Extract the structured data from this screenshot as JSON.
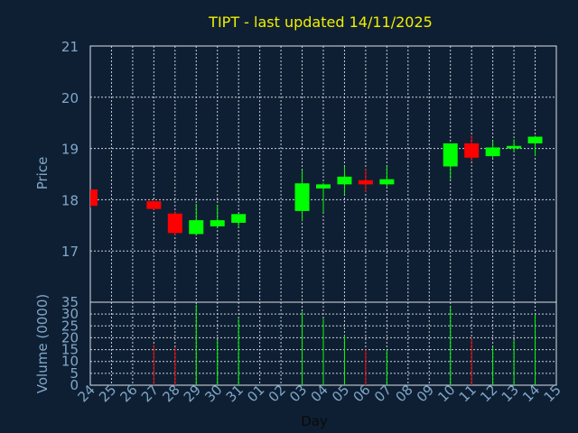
{
  "chart_data": {
    "type": "candlestick",
    "title": "TIPT - last updated 14/11/2025",
    "xlabel": "Day",
    "price_ylabel": "Price",
    "volume_ylabel": "Volume (0000)",
    "price_ylim": [
      16.0,
      21.0
    ],
    "price_ticks": [
      17,
      18,
      19,
      20,
      21
    ],
    "volume_ylim": [
      0,
      35
    ],
    "volume_ticks": [
      0,
      5,
      10,
      15,
      20,
      25,
      30,
      35
    ],
    "x_ticks": [
      "24",
      "25",
      "26",
      "27",
      "28",
      "29",
      "30",
      "31",
      "01",
      "02",
      "03",
      "04",
      "05",
      "06",
      "07",
      "08",
      "09",
      "10",
      "11",
      "12",
      "13",
      "14",
      "15"
    ],
    "grid": true,
    "colors": {
      "up": "#00ff00",
      "down": "#ff0000",
      "background": "#0f1f33",
      "text": "#7fa8c8",
      "title": "#f0f000"
    },
    "candles": [
      {
        "day": "24",
        "open": 18.2,
        "high": 18.2,
        "low": 17.85,
        "close": 17.88,
        "volume": 0
      },
      {
        "day": "27",
        "open": 17.97,
        "high": 17.98,
        "low": 17.8,
        "close": 17.82,
        "volume": 17
      },
      {
        "day": "28",
        "open": 17.73,
        "high": 17.78,
        "low": 17.3,
        "close": 17.35,
        "volume": 16
      },
      {
        "day": "29",
        "open": 17.33,
        "high": 17.92,
        "low": 17.3,
        "close": 17.6,
        "volume": 34
      },
      {
        "day": "30",
        "open": 17.48,
        "high": 17.9,
        "low": 17.45,
        "close": 17.6,
        "volume": 19
      },
      {
        "day": "31",
        "open": 17.55,
        "high": 17.72,
        "low": 17.45,
        "close": 17.72,
        "volume": 28
      },
      {
        "day": "03",
        "open": 17.78,
        "high": 18.58,
        "low": 17.58,
        "close": 18.32,
        "volume": 31
      },
      {
        "day": "04",
        "open": 18.22,
        "high": 18.33,
        "low": 17.75,
        "close": 18.3,
        "volume": 28
      },
      {
        "day": "05",
        "open": 18.3,
        "high": 18.65,
        "low": 18.1,
        "close": 18.45,
        "volume": 21
      },
      {
        "day": "06",
        "open": 18.38,
        "high": 18.6,
        "low": 18.15,
        "close": 18.3,
        "volume": 15
      },
      {
        "day": "07",
        "open": 18.3,
        "high": 18.65,
        "low": 18.25,
        "close": 18.4,
        "volume": 15
      },
      {
        "day": "10",
        "open": 18.65,
        "high": 19.1,
        "low": 18.4,
        "close": 19.1,
        "volume": 33
      },
      {
        "day": "11",
        "open": 19.1,
        "high": 19.25,
        "low": 18.75,
        "close": 18.82,
        "volume": 20
      },
      {
        "day": "12",
        "open": 18.85,
        "high": 19.15,
        "low": 18.82,
        "close": 19.02,
        "volume": 16
      },
      {
        "day": "13",
        "open": 19.0,
        "high": 19.18,
        "low": 18.93,
        "close": 19.05,
        "volume": 19
      },
      {
        "day": "14",
        "open": 19.1,
        "high": 19.25,
        "low": 18.85,
        "close": 19.23,
        "volume": 30
      }
    ]
  }
}
